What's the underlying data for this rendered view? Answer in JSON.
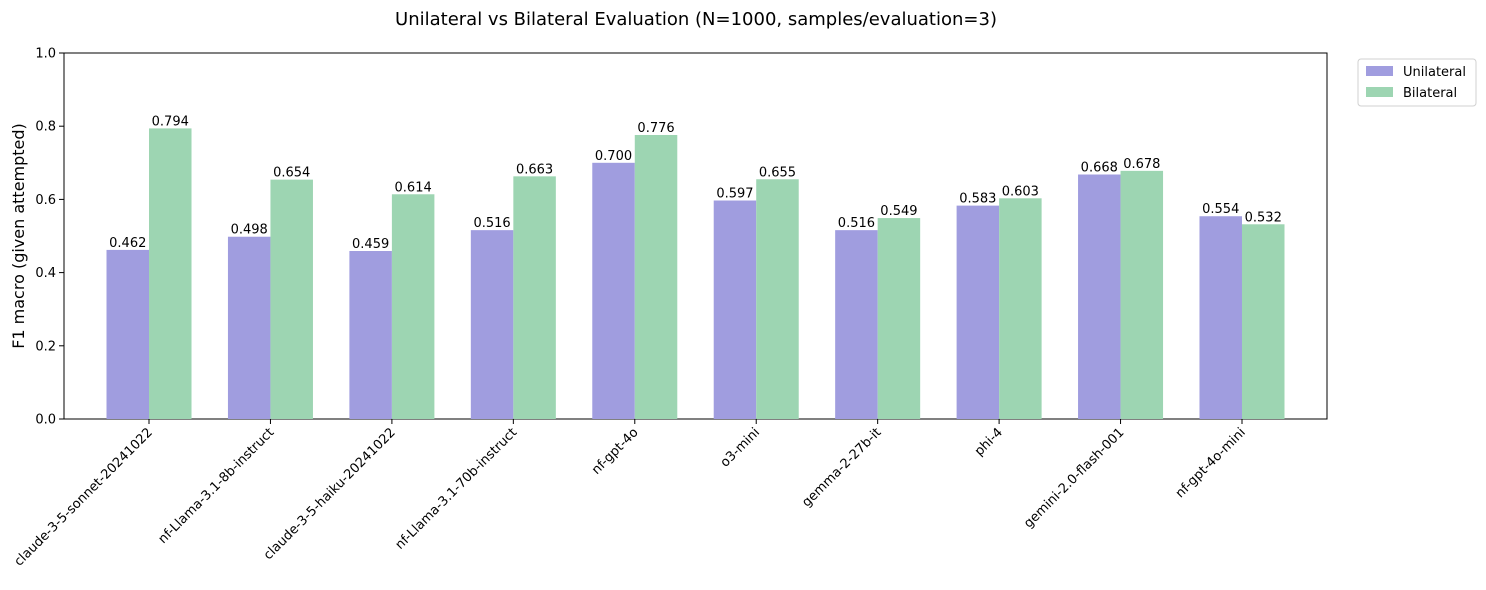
{
  "chart_data": {
    "type": "bar",
    "title": "Unilateral vs Bilateral Evaluation (N=1000, samples/evaluation=3)",
    "xlabel": "",
    "ylabel": "F1 macro (given attempted)",
    "ylim": [
      0,
      1.0
    ],
    "yticks": [
      "0.0",
      "0.2",
      "0.4",
      "0.6",
      "0.8",
      "1.0"
    ],
    "grid": false,
    "legend_position": "upper right, outside plot",
    "categories": [
      "claude-3-5-sonnet-20241022",
      "nf-Llama-3.1-8b-instruct",
      "claude-3-5-haiku-20241022",
      "nf-Llama-3.1-70b-instruct",
      "nf-gpt-4o",
      "o3-mini",
      "gemma-2-27b-it",
      "phi-4",
      "gemini-2.0-flash-001",
      "nf-gpt-4o-mini"
    ],
    "series": [
      {
        "name": "Unilateral",
        "color": "#a09ddf",
        "values": [
          0.462,
          0.498,
          0.459,
          0.516,
          0.7,
          0.597,
          0.516,
          0.583,
          0.668,
          0.554
        ],
        "labels": [
          "0.462",
          "0.498",
          "0.459",
          "0.516",
          "0.700",
          "0.597",
          "0.516",
          "0.583",
          "0.668",
          "0.554"
        ]
      },
      {
        "name": "Bilateral",
        "color": "#9dd5b2",
        "values": [
          0.794,
          0.654,
          0.614,
          0.663,
          0.776,
          0.655,
          0.549,
          0.603,
          0.678,
          0.532
        ],
        "labels": [
          "0.794",
          "0.654",
          "0.614",
          "0.663",
          "0.776",
          "0.655",
          "0.549",
          "0.603",
          "0.678",
          "0.532"
        ]
      }
    ]
  }
}
